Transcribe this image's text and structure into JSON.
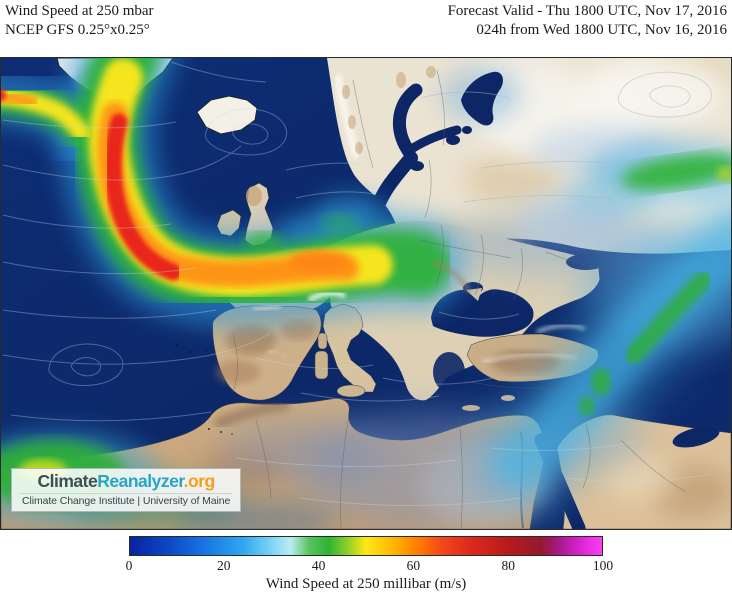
{
  "header": {
    "title": "Wind Speed at 250 mbar",
    "model": "NCEP GFS 0.25°x0.25°",
    "forecast_valid": "Forecast Valid - Thu 1800 UTC, Nov 17, 2016",
    "forecast_init": "024h from Wed 1800 UTC, Nov 16, 2016"
  },
  "logo": {
    "climate": "Climate",
    "reanalyzer": "Reanalyzer",
    "org": ".org",
    "institute": "Climate Change Institute | University of Maine",
    "colors": {
      "climate": "#3d4e57",
      "reanalyzer": "#2aa3c8",
      "org": "#f59d1e"
    }
  },
  "colorbar": {
    "label": "Wind Speed at 250 millibar (m/s)",
    "units": "m/s",
    "min": 0,
    "max": 100,
    "ticks": [
      0,
      20,
      40,
      60,
      80,
      100
    ],
    "stops": [
      {
        "value": 0,
        "color": "#0a22a0"
      },
      {
        "value": 8,
        "color": "#0d47c4"
      },
      {
        "value": 16,
        "color": "#1976e3"
      },
      {
        "value": 24,
        "color": "#2fa7ee"
      },
      {
        "value": 30,
        "color": "#7fd4f5"
      },
      {
        "value": 34,
        "color": "#b9ecf2"
      },
      {
        "value": 38,
        "color": "#58c45c"
      },
      {
        "value": 42,
        "color": "#2eb335"
      },
      {
        "value": 46,
        "color": "#8ccf28"
      },
      {
        "value": 50,
        "color": "#ffe814"
      },
      {
        "value": 56,
        "color": "#ffb400"
      },
      {
        "value": 61,
        "color": "#ff7d00"
      },
      {
        "value": 66,
        "color": "#f4481a"
      },
      {
        "value": 72,
        "color": "#dd2a1c"
      },
      {
        "value": 80,
        "color": "#b81b1b"
      },
      {
        "value": 87,
        "color": "#94192f"
      },
      {
        "value": 91,
        "color": "#a8188c"
      },
      {
        "value": 96,
        "color": "#e026d8"
      },
      {
        "value": 100,
        "color": "#fb40f0"
      }
    ]
  }
}
